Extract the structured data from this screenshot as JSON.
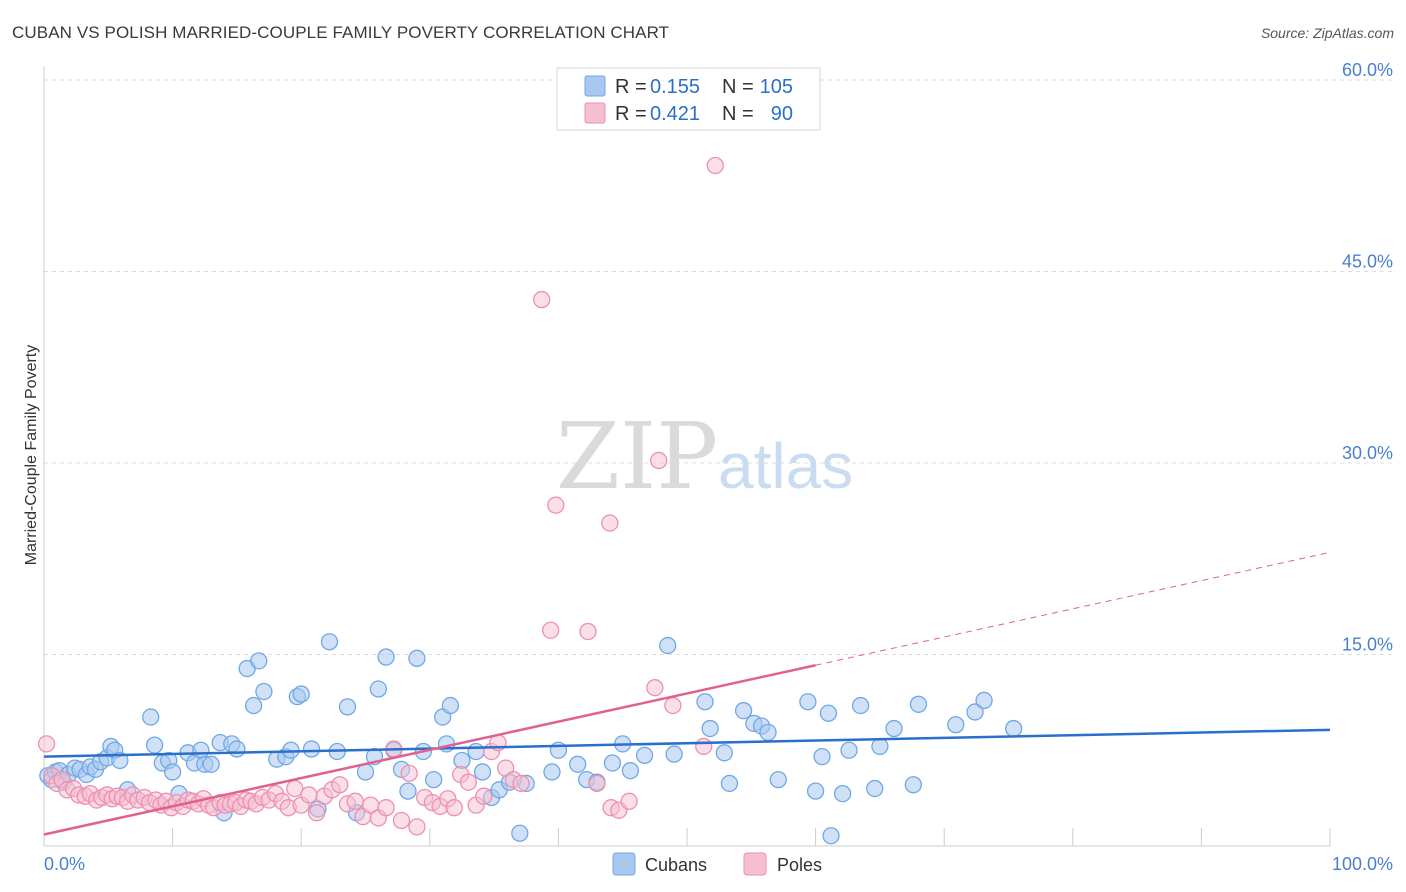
{
  "title": "CUBAN VS POLISH MARRIED-COUPLE FAMILY POVERTY CORRELATION CHART",
  "source": "Source: ZipAtlas.com",
  "watermark": {
    "zip": "ZIP",
    "atlas": "atlas"
  },
  "colors": {
    "cuban": "#6fa8e6",
    "cuban_fill": "#a9c8f0",
    "cuban_line": "#2a6fcc",
    "polish": "#ee8fb0",
    "polish_fill": "#f6bfd1",
    "polish_line": "#e0618f",
    "axis_text": "#4a7fd0",
    "grid": "#dddddd"
  },
  "legend": {
    "rows": [
      {
        "r_label": "R = ",
        "r_value": "0.155",
        "n_label": "N = ",
        "n_value": "105",
        "series": "cuban"
      },
      {
        "r_label": "R = ",
        "r_value": "0.421",
        "n_label": "N = ",
        "n_value": "90",
        "series": "polish"
      }
    ]
  },
  "chart_data": {
    "type": "scatter",
    "title": "CUBAN VS POLISH MARRIED-COUPLE FAMILY POVERTY CORRELATION CHART",
    "xlabel": "",
    "ylabel": "Married-Couple Family Poverty",
    "xlim": [
      0,
      100
    ],
    "ylim": [
      0,
      60
    ],
    "x_ticks": [
      "0.0%",
      "100.0%"
    ],
    "y_ticks": [
      {
        "value": 15,
        "label": "15.0%"
      },
      {
        "value": 30,
        "label": "30.0%"
      },
      {
        "value": 45,
        "label": "45.0%"
      },
      {
        "value": 60,
        "label": "60.0%"
      }
    ],
    "grid": true,
    "legend_position": "top-center",
    "series": [
      {
        "name": "Cubans",
        "r": 0.155,
        "n": 105,
        "trend": {
          "x": [
            0,
            100
          ],
          "y": [
            7.0,
            9.1
          ]
        },
        "points": [
          [
            0.3,
            5.5
          ],
          [
            0.6,
            5.2
          ],
          [
            0.9,
            5.8
          ],
          [
            1.2,
            5.9
          ],
          [
            1.5,
            5.0
          ],
          [
            1.9,
            5.6
          ],
          [
            2.4,
            6.1
          ],
          [
            2.8,
            6.0
          ],
          [
            3.3,
            5.6
          ],
          [
            3.6,
            6.2
          ],
          [
            4.0,
            6.0
          ],
          [
            4.4,
            6.6
          ],
          [
            4.9,
            6.9
          ],
          [
            5.2,
            7.8
          ],
          [
            5.5,
            7.5
          ],
          [
            5.9,
            6.7
          ],
          [
            6.5,
            4.4
          ],
          [
            8.3,
            10.1
          ],
          [
            8.6,
            7.9
          ],
          [
            9.2,
            6.5
          ],
          [
            9.7,
            6.7
          ],
          [
            10.0,
            5.8
          ],
          [
            10.5,
            4.1
          ],
          [
            11.2,
            7.3
          ],
          [
            11.7,
            6.5
          ],
          [
            12.2,
            7.5
          ],
          [
            12.5,
            6.4
          ],
          [
            13.0,
            6.4
          ],
          [
            13.7,
            8.1
          ],
          [
            14.0,
            2.6
          ],
          [
            14.6,
            8.0
          ],
          [
            15.0,
            7.6
          ],
          [
            15.8,
            13.9
          ],
          [
            16.3,
            11.0
          ],
          [
            16.7,
            14.5
          ],
          [
            17.1,
            12.1
          ],
          [
            18.1,
            6.8
          ],
          [
            18.8,
            7.0
          ],
          [
            19.2,
            7.5
          ],
          [
            19.7,
            11.7
          ],
          [
            20.0,
            11.9
          ],
          [
            20.8,
            7.6
          ],
          [
            21.3,
            2.9
          ],
          [
            22.2,
            16.0
          ],
          [
            22.8,
            7.4
          ],
          [
            23.6,
            10.9
          ],
          [
            24.3,
            2.6
          ],
          [
            25.0,
            5.8
          ],
          [
            25.7,
            7.0
          ],
          [
            26.0,
            12.3
          ],
          [
            26.6,
            14.8
          ],
          [
            27.2,
            7.5
          ],
          [
            27.8,
            6.0
          ],
          [
            28.3,
            4.3
          ],
          [
            29.0,
            14.7
          ],
          [
            29.5,
            7.4
          ],
          [
            30.3,
            5.2
          ],
          [
            31.0,
            10.1
          ],
          [
            31.3,
            8.0
          ],
          [
            31.6,
            11.0
          ],
          [
            32.5,
            6.7
          ],
          [
            33.6,
            7.4
          ],
          [
            34.1,
            5.8
          ],
          [
            34.8,
            3.8
          ],
          [
            35.4,
            4.4
          ],
          [
            36.2,
            5.0
          ],
          [
            37.0,
            1.0
          ],
          [
            37.5,
            4.9
          ],
          [
            40.0,
            7.5
          ],
          [
            41.5,
            6.4
          ],
          [
            42.2,
            5.2
          ],
          [
            43.0,
            5.0
          ],
          [
            44.2,
            6.5
          ],
          [
            45.0,
            8.0
          ],
          [
            45.6,
            5.9
          ],
          [
            46.7,
            7.1
          ],
          [
            48.5,
            15.7
          ],
          [
            49.0,
            7.2
          ],
          [
            51.4,
            11.3
          ],
          [
            51.8,
            9.2
          ],
          [
            52.9,
            7.3
          ],
          [
            53.3,
            4.9
          ],
          [
            54.4,
            10.6
          ],
          [
            55.2,
            9.6
          ],
          [
            55.8,
            9.4
          ],
          [
            56.3,
            8.9
          ],
          [
            57.1,
            5.2
          ],
          [
            59.4,
            11.3
          ],
          [
            60.0,
            4.3
          ],
          [
            60.5,
            7.0
          ],
          [
            61.0,
            10.4
          ],
          [
            62.1,
            4.1
          ],
          [
            62.6,
            7.5
          ],
          [
            63.5,
            11.0
          ],
          [
            64.6,
            4.5
          ],
          [
            65.0,
            7.8
          ],
          [
            66.1,
            9.2
          ],
          [
            67.6,
            4.8
          ],
          [
            68.0,
            11.1
          ],
          [
            70.9,
            9.5
          ],
          [
            72.4,
            10.5
          ],
          [
            73.1,
            11.4
          ],
          [
            75.4,
            9.2
          ],
          [
            61.2,
            0.8
          ],
          [
            39.5,
            5.8
          ]
        ]
      },
      {
        "name": "Poles",
        "r": 0.421,
        "n": 90,
        "trend": {
          "x": [
            0,
            100
          ],
          "y": [
            0.9,
            23.0
          ]
        },
        "trend_solid_until": 60,
        "points": [
          [
            0.2,
            8.0
          ],
          [
            0.6,
            5.5
          ],
          [
            1.0,
            4.9
          ],
          [
            1.4,
            5.2
          ],
          [
            1.8,
            4.4
          ],
          [
            2.3,
            4.5
          ],
          [
            2.7,
            4.0
          ],
          [
            3.2,
            3.9
          ],
          [
            3.6,
            4.1
          ],
          [
            4.1,
            3.6
          ],
          [
            4.5,
            3.8
          ],
          [
            4.9,
            4.0
          ],
          [
            5.3,
            3.7
          ],
          [
            5.7,
            3.9
          ],
          [
            6.1,
            3.8
          ],
          [
            6.5,
            3.5
          ],
          [
            6.9,
            4.0
          ],
          [
            7.3,
            3.6
          ],
          [
            7.8,
            3.8
          ],
          [
            8.2,
            3.4
          ],
          [
            8.7,
            3.6
          ],
          [
            9.1,
            3.2
          ],
          [
            9.5,
            3.5
          ],
          [
            9.9,
            3.0
          ],
          [
            10.3,
            3.4
          ],
          [
            10.8,
            3.1
          ],
          [
            11.2,
            3.6
          ],
          [
            11.6,
            3.5
          ],
          [
            12.0,
            3.3
          ],
          [
            12.4,
            3.7
          ],
          [
            12.8,
            3.2
          ],
          [
            13.2,
            3.0
          ],
          [
            13.7,
            3.4
          ],
          [
            14.1,
            3.2
          ],
          [
            14.5,
            3.3
          ],
          [
            14.9,
            3.4
          ],
          [
            15.3,
            3.1
          ],
          [
            15.7,
            3.6
          ],
          [
            16.1,
            3.5
          ],
          [
            16.5,
            3.3
          ],
          [
            17.0,
            3.8
          ],
          [
            17.5,
            3.6
          ],
          [
            18.0,
            4.1
          ],
          [
            18.5,
            3.5
          ],
          [
            19.0,
            3.0
          ],
          [
            19.5,
            4.5
          ],
          [
            20.0,
            3.2
          ],
          [
            20.6,
            4.0
          ],
          [
            21.2,
            2.6
          ],
          [
            21.8,
            3.9
          ],
          [
            22.4,
            4.4
          ],
          [
            23.0,
            4.8
          ],
          [
            23.6,
            3.3
          ],
          [
            24.2,
            3.5
          ],
          [
            24.8,
            2.3
          ],
          [
            25.4,
            3.2
          ],
          [
            26.0,
            2.2
          ],
          [
            26.6,
            3.0
          ],
          [
            27.2,
            7.6
          ],
          [
            27.8,
            2.0
          ],
          [
            28.4,
            5.7
          ],
          [
            29.0,
            1.5
          ],
          [
            29.6,
            3.8
          ],
          [
            30.2,
            3.4
          ],
          [
            30.8,
            3.1
          ],
          [
            31.4,
            3.7
          ],
          [
            31.9,
            3.0
          ],
          [
            32.4,
            5.6
          ],
          [
            33.0,
            5.0
          ],
          [
            33.6,
            3.2
          ],
          [
            34.2,
            3.9
          ],
          [
            34.8,
            7.4
          ],
          [
            35.3,
            8.1
          ],
          [
            35.9,
            6.1
          ],
          [
            36.5,
            5.2
          ],
          [
            37.1,
            4.9
          ],
          [
            38.7,
            42.8
          ],
          [
            39.4,
            16.9
          ],
          [
            39.8,
            26.7
          ],
          [
            42.3,
            16.8
          ],
          [
            43.0,
            4.9
          ],
          [
            44.1,
            3.0
          ],
          [
            44.7,
            2.8
          ],
          [
            44.0,
            25.3
          ],
          [
            45.5,
            3.5
          ],
          [
            47.8,
            30.2
          ],
          [
            47.5,
            12.4
          ],
          [
            48.9,
            11.0
          ],
          [
            52.2,
            53.3
          ],
          [
            51.3,
            7.8
          ]
        ]
      }
    ]
  },
  "bottom_legend": {
    "items": [
      {
        "label": "Cubans",
        "series": "cuban"
      },
      {
        "label": "Poles",
        "series": "polish"
      }
    ]
  }
}
